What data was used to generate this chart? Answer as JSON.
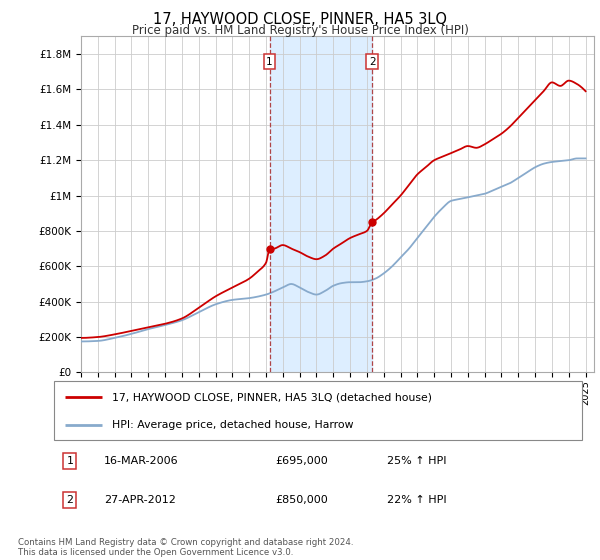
{
  "title": "17, HAYWOOD CLOSE, PINNER, HA5 3LQ",
  "subtitle": "Price paid vs. HM Land Registry's House Price Index (HPI)",
  "title_fontsize": 10.5,
  "subtitle_fontsize": 8.5,
  "background_color": "#ffffff",
  "plot_bg_color": "#ffffff",
  "grid_color": "#cccccc",
  "ylim": [
    0,
    1900000
  ],
  "yticks": [
    0,
    200000,
    400000,
    600000,
    800000,
    1000000,
    1200000,
    1400000,
    1600000,
    1800000
  ],
  "ytick_labels": [
    "£0",
    "£200K",
    "£400K",
    "£600K",
    "£800K",
    "£1M",
    "£1.2M",
    "£1.4M",
    "£1.6M",
    "£1.8M"
  ],
  "xlim_start": 1995.0,
  "xlim_end": 2025.5,
  "red_line_color": "#cc0000",
  "blue_line_color": "#88aacc",
  "transaction1_x": 2006.21,
  "transaction2_x": 2012.32,
  "legend_line1": "17, HAYWOOD CLOSE, PINNER, HA5 3LQ (detached house)",
  "legend_line2": "HPI: Average price, detached house, Harrow",
  "table_row1_num": "1",
  "table_row1_date": "16-MAR-2006",
  "table_row1_price": "£695,000",
  "table_row1_hpi": "25% ↑ HPI",
  "table_row2_num": "2",
  "table_row2_date": "27-APR-2012",
  "table_row2_price": "£850,000",
  "table_row2_hpi": "22% ↑ HPI",
  "footer": "Contains HM Land Registry data © Crown copyright and database right 2024.\nThis data is licensed under the Open Government Licence v3.0.",
  "highlight_rect_color": "#ddeeff",
  "dashed_line_color": "#aa3333",
  "hpi_key_points": [
    [
      1995.0,
      175000
    ],
    [
      1996.0,
      178000
    ],
    [
      1997.0,
      195000
    ],
    [
      1998.0,
      218000
    ],
    [
      1999.0,
      245000
    ],
    [
      2000.0,
      268000
    ],
    [
      2001.0,
      295000
    ],
    [
      2002.0,
      340000
    ],
    [
      2003.0,
      385000
    ],
    [
      2004.0,
      410000
    ],
    [
      2005.0,
      420000
    ],
    [
      2006.0,
      440000
    ],
    [
      2007.0,
      480000
    ],
    [
      2007.5,
      500000
    ],
    [
      2008.0,
      480000
    ],
    [
      2008.5,
      455000
    ],
    [
      2009.0,
      440000
    ],
    [
      2009.5,
      460000
    ],
    [
      2010.0,
      490000
    ],
    [
      2010.5,
      505000
    ],
    [
      2011.0,
      510000
    ],
    [
      2011.5,
      510000
    ],
    [
      2012.0,
      515000
    ],
    [
      2012.5,
      530000
    ],
    [
      2013.0,
      560000
    ],
    [
      2013.5,
      600000
    ],
    [
      2014.0,
      650000
    ],
    [
      2014.5,
      700000
    ],
    [
      2015.0,
      760000
    ],
    [
      2015.5,
      820000
    ],
    [
      2016.0,
      880000
    ],
    [
      2016.5,
      930000
    ],
    [
      2017.0,
      970000
    ],
    [
      2017.5,
      980000
    ],
    [
      2018.0,
      990000
    ],
    [
      2018.5,
      1000000
    ],
    [
      2019.0,
      1010000
    ],
    [
      2019.5,
      1030000
    ],
    [
      2020.0,
      1050000
    ],
    [
      2020.5,
      1070000
    ],
    [
      2021.0,
      1100000
    ],
    [
      2021.5,
      1130000
    ],
    [
      2022.0,
      1160000
    ],
    [
      2022.5,
      1180000
    ],
    [
      2023.0,
      1190000
    ],
    [
      2023.5,
      1195000
    ],
    [
      2024.0,
      1200000
    ],
    [
      2024.5,
      1210000
    ],
    [
      2025.0,
      1210000
    ]
  ],
  "red_key_points": [
    [
      1995.0,
      195000
    ],
    [
      1996.0,
      200000
    ],
    [
      1997.0,
      215000
    ],
    [
      1998.0,
      235000
    ],
    [
      1999.0,
      255000
    ],
    [
      2000.0,
      275000
    ],
    [
      2001.0,
      305000
    ],
    [
      2002.0,
      365000
    ],
    [
      2003.0,
      430000
    ],
    [
      2004.0,
      480000
    ],
    [
      2005.0,
      530000
    ],
    [
      2005.5,
      570000
    ],
    [
      2006.0,
      620000
    ],
    [
      2006.21,
      695000
    ],
    [
      2006.5,
      700000
    ],
    [
      2007.0,
      720000
    ],
    [
      2007.5,
      700000
    ],
    [
      2008.0,
      680000
    ],
    [
      2008.5,
      655000
    ],
    [
      2009.0,
      640000
    ],
    [
      2009.5,
      660000
    ],
    [
      2010.0,
      700000
    ],
    [
      2010.5,
      730000
    ],
    [
      2011.0,
      760000
    ],
    [
      2011.5,
      780000
    ],
    [
      2012.0,
      800000
    ],
    [
      2012.32,
      850000
    ],
    [
      2012.5,
      860000
    ],
    [
      2013.0,
      900000
    ],
    [
      2013.5,
      950000
    ],
    [
      2014.0,
      1000000
    ],
    [
      2014.5,
      1060000
    ],
    [
      2015.0,
      1120000
    ],
    [
      2015.5,
      1160000
    ],
    [
      2016.0,
      1200000
    ],
    [
      2016.5,
      1220000
    ],
    [
      2017.0,
      1240000
    ],
    [
      2017.5,
      1260000
    ],
    [
      2018.0,
      1280000
    ],
    [
      2018.5,
      1270000
    ],
    [
      2019.0,
      1290000
    ],
    [
      2019.5,
      1320000
    ],
    [
      2020.0,
      1350000
    ],
    [
      2020.5,
      1390000
    ],
    [
      2021.0,
      1440000
    ],
    [
      2021.5,
      1490000
    ],
    [
      2022.0,
      1540000
    ],
    [
      2022.5,
      1590000
    ],
    [
      2023.0,
      1640000
    ],
    [
      2023.5,
      1620000
    ],
    [
      2024.0,
      1650000
    ],
    [
      2024.5,
      1630000
    ],
    [
      2025.0,
      1590000
    ]
  ]
}
